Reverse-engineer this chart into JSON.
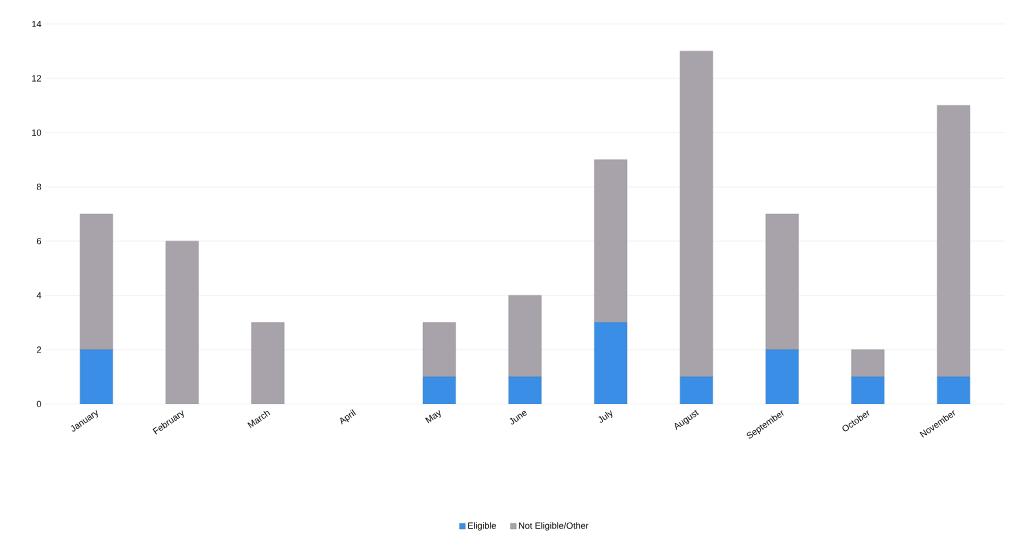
{
  "chart_data": {
    "type": "bar",
    "stacked": true,
    "categories": [
      "January",
      "February",
      "March",
      "April",
      "May",
      "June",
      "July",
      "August",
      "September",
      "October",
      "November"
    ],
    "series": [
      {
        "name": "Eligible",
        "color": "#3a8ee6",
        "values": [
          2,
          0,
          0,
          0,
          1,
          1,
          3,
          1,
          2,
          1,
          1
        ]
      },
      {
        "name": "Not Eligible/Other",
        "color": "#a8a3ab",
        "values": [
          5,
          6,
          3,
          0,
          2,
          3,
          6,
          12,
          5,
          1,
          10
        ]
      }
    ],
    "ylim": [
      0,
      14
    ],
    "yticks": [
      0,
      2,
      4,
      6,
      8,
      10,
      12,
      14
    ],
    "grid": "y",
    "legend": "bottom"
  }
}
